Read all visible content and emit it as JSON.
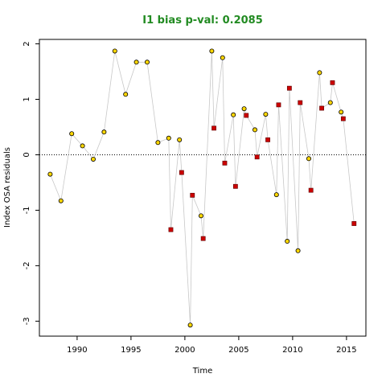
{
  "chart_data": {
    "type": "scatter",
    "title": "I1 bias p-val: 0.2085",
    "xlabel": "Time",
    "ylabel": "Index OSA residuals",
    "xlim": [
      1986.5,
      2016.8
    ],
    "ylim": [
      -3.27,
      2.08
    ],
    "xticks": [
      1990,
      1995,
      2000,
      2005,
      2010,
      2015
    ],
    "yticks": [
      -3,
      -2,
      -1,
      0,
      1,
      2
    ],
    "reference_line": 0,
    "colors": {
      "title": "#228b22",
      "line": "#c8c8c8",
      "yellow": "#ffd700",
      "red": "#cc0000"
    },
    "series": [
      {
        "marker": "circle",
        "color": "#ffd700",
        "x": [
          1987.5,
          1988.5,
          1989.5,
          1990.5,
          1991.5,
          1992.5,
          1993.5,
          1994.5,
          1995.5,
          1996.5,
          1997.5,
          1998.5,
          1999.5,
          2000.5,
          2001.5,
          2002.5,
          2003.5,
          2004.5,
          2005.5,
          2006.5,
          2007.5,
          2008.5,
          2009.5,
          2010.5,
          2011.5,
          2012.5,
          2013.5,
          2014.5
        ],
        "y": [
          -0.35,
          -0.83,
          0.38,
          0.16,
          -0.08,
          0.41,
          1.87,
          1.09,
          1.67,
          1.67,
          0.22,
          0.3,
          0.27,
          -3.07,
          -1.1,
          1.87,
          1.75,
          0.72,
          0.83,
          0.45,
          0.73,
          -0.72,
          -1.56,
          -1.73,
          -0.07,
          1.48,
          0.94,
          0.77
        ]
      },
      {
        "marker": "square",
        "color": "#cc0000",
        "x": [
          1998.7,
          1999.7,
          2000.7,
          2001.7,
          2002.7,
          2003.7,
          2004.7,
          2005.7,
          2006.7,
          2007.7,
          2008.7,
          2009.7,
          2010.7,
          2011.7,
          2012.7,
          2013.7,
          2014.7,
          2015.7
        ],
        "y": [
          -1.35,
          -0.32,
          -0.73,
          -1.51,
          0.48,
          -0.15,
          -0.57,
          0.71,
          -0.04,
          0.27,
          0.9,
          1.2,
          0.94,
          -0.64,
          0.84,
          1.3,
          0.65,
          -1.24
        ]
      }
    ]
  }
}
